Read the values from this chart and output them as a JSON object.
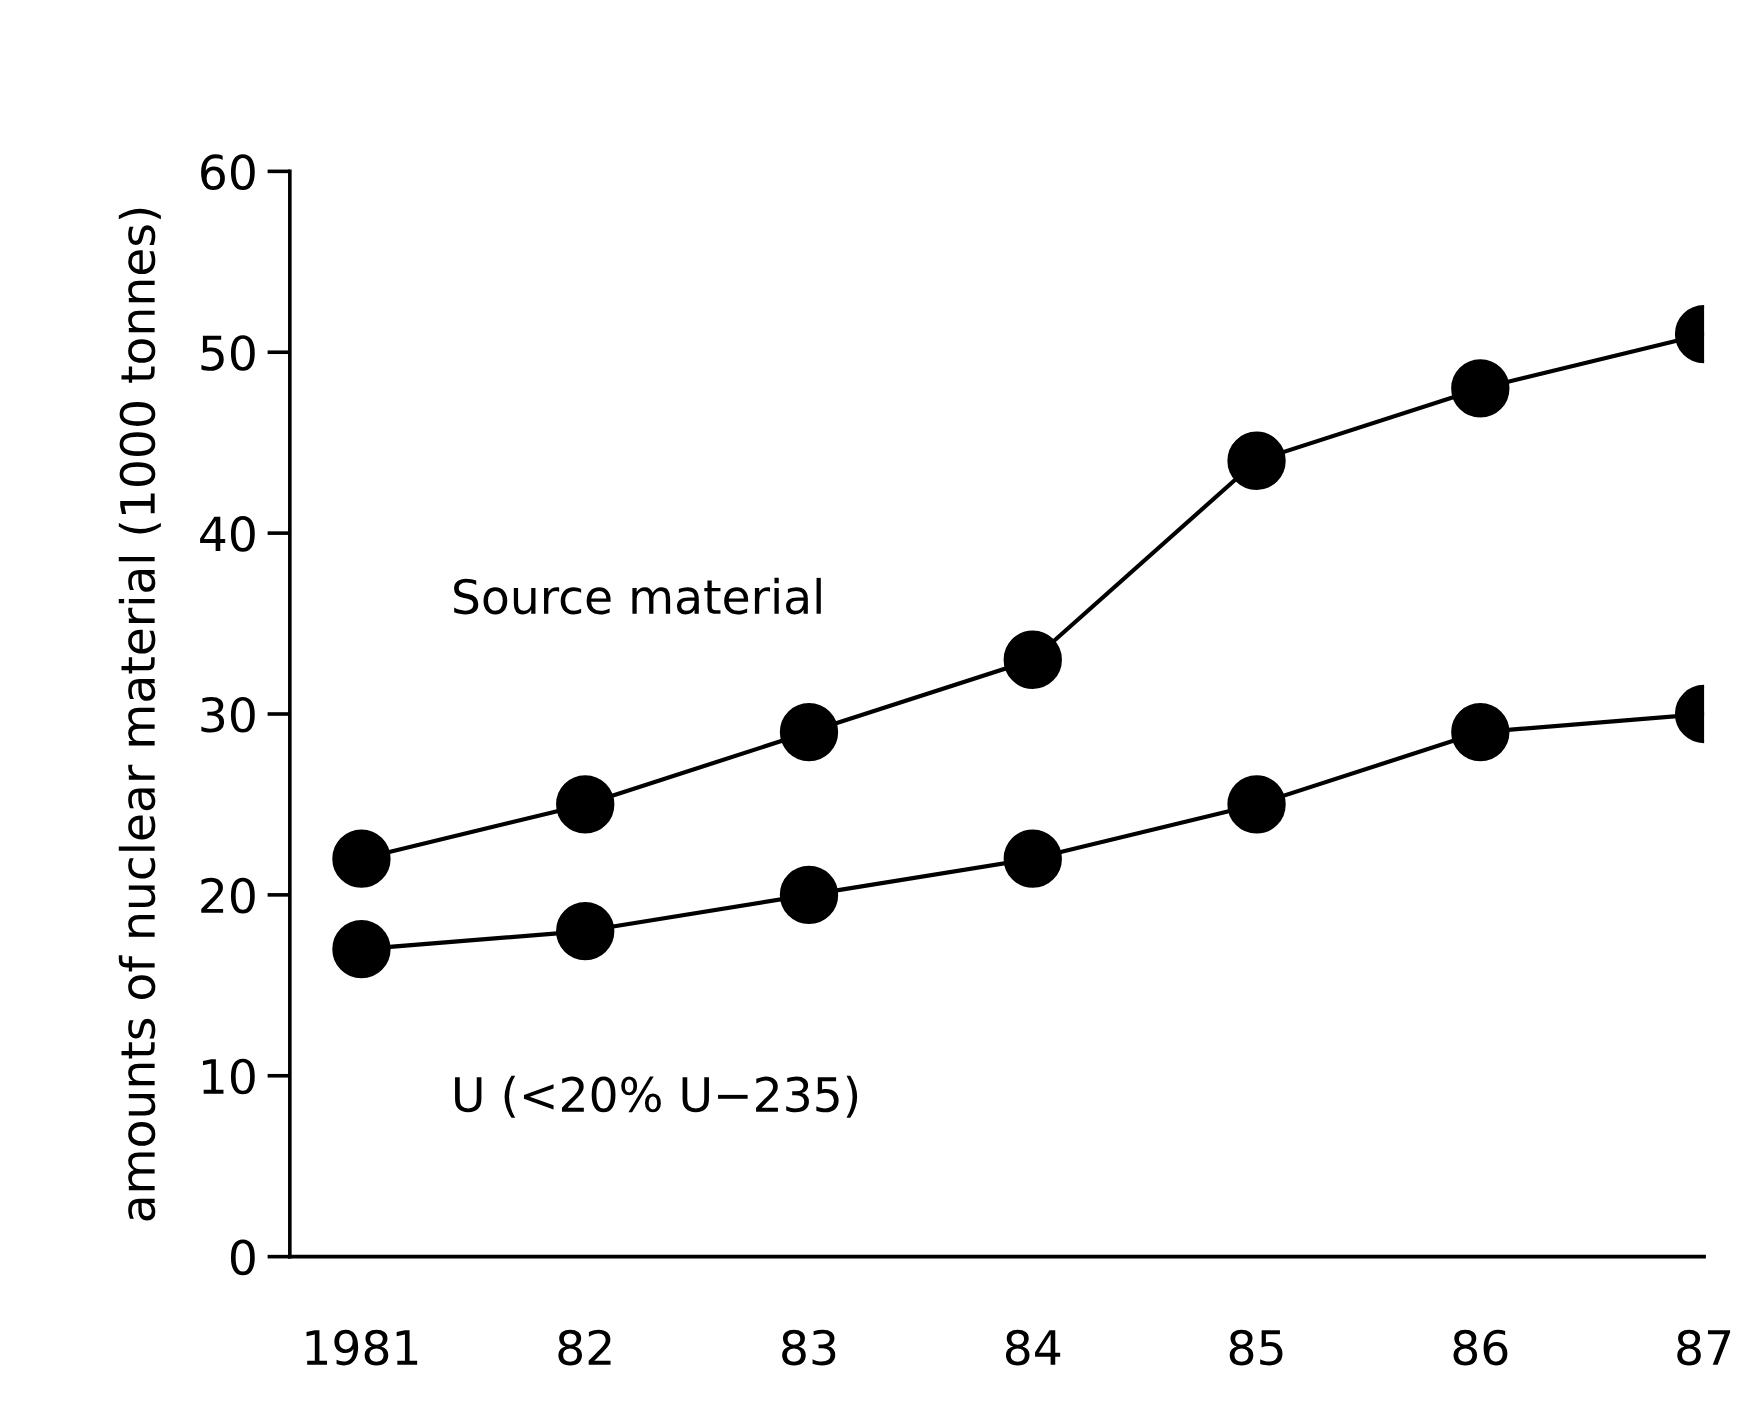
{
  "chart_data": {
    "type": "line",
    "ylabel": "amounts of nuclear material (1000 tonnes)",
    "categories": [
      "1981",
      "82",
      "83",
      "84",
      "85",
      "86",
      "87"
    ],
    "series": [
      {
        "name": "Source material",
        "color": "#000000",
        "values": [
          22,
          25,
          29,
          33,
          44,
          48,
          51
        ]
      },
      {
        "name": "U (<20% U−235)",
        "color": "#000000",
        "values": [
          17,
          18,
          20,
          22,
          25,
          29,
          30
        ]
      }
    ],
    "ylim": [
      0,
      60
    ],
    "yticks": [
      0,
      10,
      20,
      30,
      40,
      50,
      60
    ],
    "grid": false,
    "legend": false,
    "marker": "circle",
    "line_style": "solid"
  }
}
